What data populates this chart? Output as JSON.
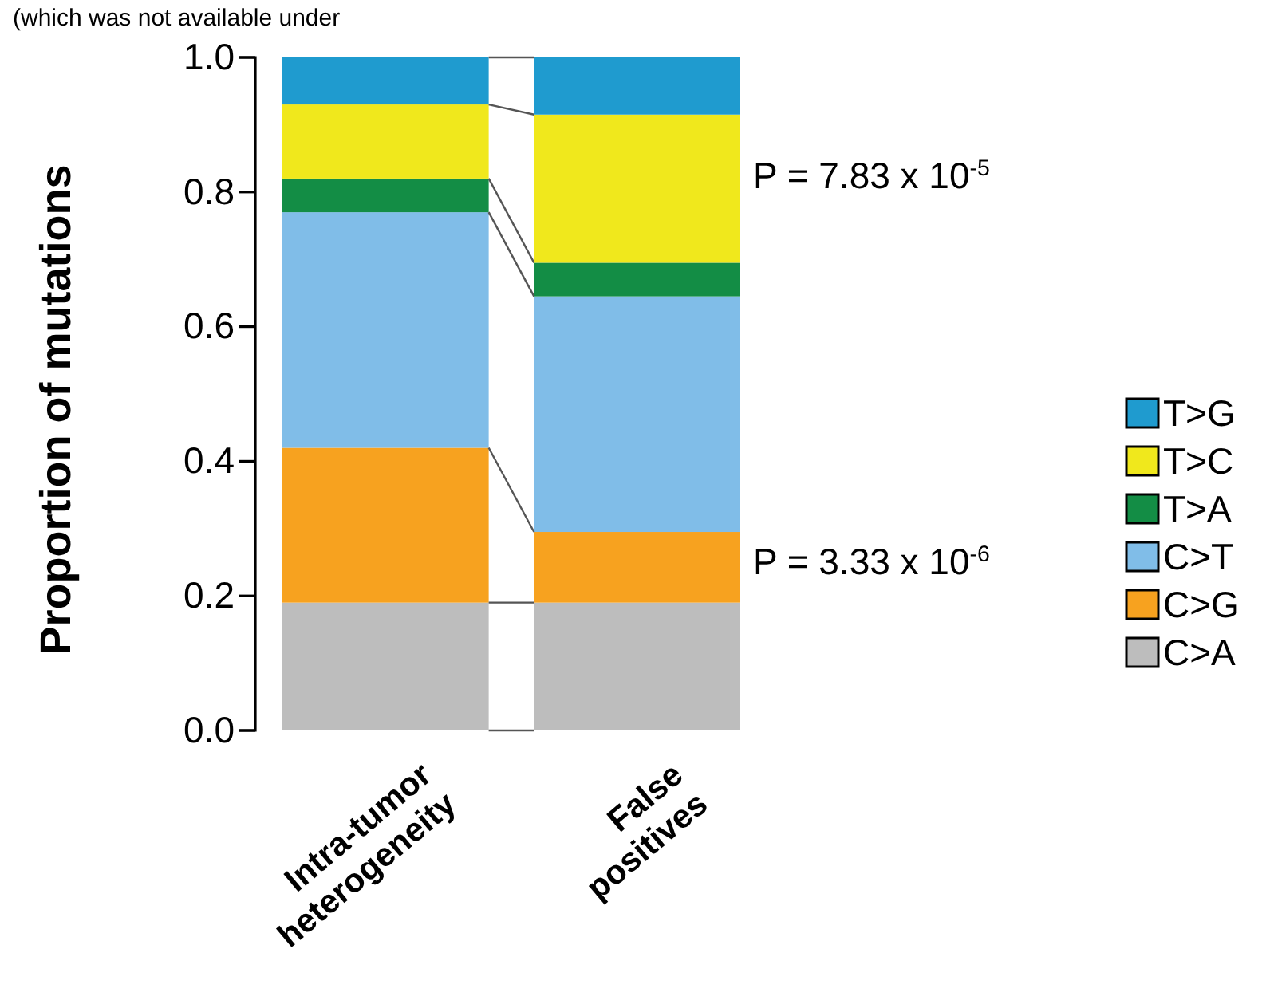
{
  "chart_data": {
    "type": "bar",
    "stacked": true,
    "ylabel": "Proportion of mutations",
    "categories": [
      "Intra-tumor heterogeneity",
      "False positives"
    ],
    "series": [
      {
        "name": "C>A",
        "color": "#bdbdbd",
        "values": [
          0.19,
          0.19
        ]
      },
      {
        "name": "C>G",
        "color": "#f7a21f",
        "values": [
          0.23,
          0.105
        ]
      },
      {
        "name": "C>T",
        "color": "#80bde8",
        "values": [
          0.35,
          0.35
        ]
      },
      {
        "name": "T>A",
        "color": "#138d45",
        "values": [
          0.05,
          0.05
        ]
      },
      {
        "name": "T>C",
        "color": "#f0e81c",
        "values": [
          0.11,
          0.22
        ]
      },
      {
        "name": "T>G",
        "color": "#1f9bcf",
        "values": [
          0.07,
          0.085
        ]
      }
    ],
    "ylim": [
      0,
      1
    ],
    "yticks": [
      {
        "value": 0,
        "label": "0.0"
      },
      {
        "value": 0.2,
        "label": "0.2"
      },
      {
        "value": 0.4,
        "label": "0.4"
      },
      {
        "value": 0.6,
        "label": "0.6"
      },
      {
        "value": 0.8,
        "label": "0.8"
      },
      {
        "value": 1,
        "label": "1.0"
      }
    ],
    "legend": "right",
    "annotations": [
      "P = 7.83 x 10$^{-5}$",
      "P = 3.33 x 10$^{-6}$",
      "(which was not available under"
    ]
  }
}
